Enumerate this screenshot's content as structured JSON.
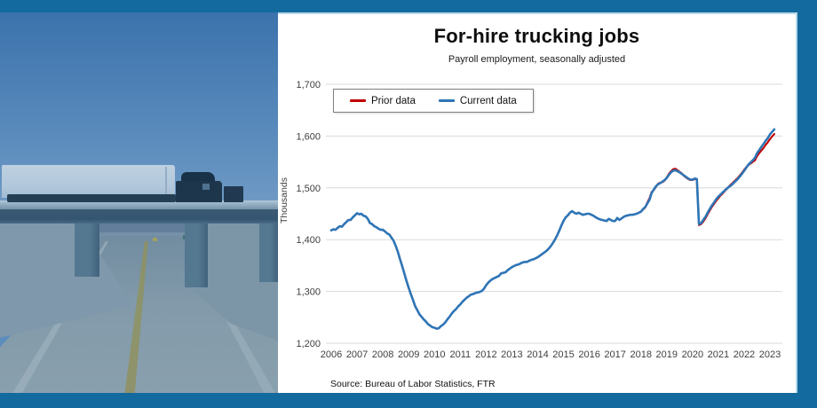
{
  "frame": {
    "border_color": "#136a9e",
    "edge_highlight_color": "#b7d9eb"
  },
  "photo": {
    "description": "Semi truck crossing a highway overpass, viewed from road below, blue tinted"
  },
  "chart": {
    "title": "For-hire trucking jobs",
    "subtitle": "Payroll employment, seasonally adjusted",
    "y_axis_title": "Thousands",
    "source": "Source: Bureau of Labor Statistics, FTR",
    "legend": [
      {
        "label": "Prior data",
        "color": "#c00000"
      },
      {
        "label": "Current data",
        "color": "#2e75b6"
      }
    ]
  },
  "chart_data": {
    "type": "line",
    "title": "For-hire trucking jobs",
    "subtitle": "Payroll employment, seasonally adjusted",
    "xlabel": "",
    "ylabel": "Thousands",
    "ylim": [
      1200,
      1700
    ],
    "y_ticks": [
      1200,
      1300,
      1400,
      1500,
      1600,
      1700
    ],
    "x_ticks": [
      2006,
      2007,
      2008,
      2009,
      2010,
      2011,
      2012,
      2013,
      2014,
      2015,
      2016,
      2017,
      2018,
      2019,
      2020,
      2021,
      2022,
      2023
    ],
    "grid": "horizontal",
    "gridline_color": "#d9d9d9",
    "legend_position": "top-left",
    "x_start": 2006.0,
    "x_step_months": 1,
    "series": [
      {
        "name": "Prior data",
        "color": "#c00000",
        "values": [
          1418,
          1420,
          1419,
          1423,
          1426,
          1425,
          1430,
          1434,
          1438,
          1438,
          1443,
          1447,
          1451,
          1449,
          1450,
          1446,
          1445,
          1440,
          1432,
          1430,
          1426,
          1424,
          1421,
          1419,
          1419,
          1416,
          1412,
          1410,
          1404,
          1398,
          1388,
          1376,
          1362,
          1349,
          1335,
          1320,
          1307,
          1295,
          1284,
          1272,
          1264,
          1256,
          1251,
          1246,
          1242,
          1237,
          1234,
          1231,
          1230,
          1228,
          1229,
          1233,
          1236,
          1240,
          1246,
          1251,
          1257,
          1262,
          1266,
          1271,
          1275,
          1280,
          1284,
          1288,
          1291,
          1294,
          1295,
          1297,
          1298,
          1299,
          1301,
          1305,
          1312,
          1317,
          1321,
          1324,
          1326,
          1328,
          1330,
          1335,
          1336,
          1337,
          1341,
          1344,
          1347,
          1349,
          1351,
          1352,
          1354,
          1356,
          1357,
          1357,
          1359,
          1361,
          1362,
          1364,
          1366,
          1369,
          1372,
          1375,
          1378,
          1382,
          1387,
          1393,
          1400,
          1408,
          1417,
          1427,
          1436,
          1443,
          1447,
          1452,
          1455,
          1452,
          1450,
          1452,
          1450,
          1448,
          1449,
          1450,
          1450,
          1448,
          1446,
          1443,
          1441,
          1439,
          1438,
          1437,
          1436,
          1440,
          1438,
          1436,
          1436,
          1442,
          1438,
          1441,
          1444,
          1446,
          1447,
          1448,
          1448,
          1449,
          1450,
          1452,
          1454,
          1458,
          1462,
          1472,
          1480,
          1492,
          1496,
          1502,
          1508,
          1510,
          1511,
          1514,
          1520,
          1527,
          1532,
          1536,
          1537,
          1534,
          1531,
          1528,
          1523,
          1520,
          1517,
          1515,
          1515,
          1517,
          1516,
          1428,
          1430,
          1435,
          1441,
          1449,
          1456,
          1463,
          1469,
          1475,
          1480,
          1485,
          1489,
          1494,
          1498,
          1503,
          1507,
          1511,
          1515,
          1519,
          1524,
          1529,
          1535,
          1540,
          1544,
          1547,
          1550,
          1553,
          1561,
          1567,
          1572,
          1577,
          1583,
          1588,
          1594,
          1599,
          1604
        ]
      },
      {
        "name": "Current data",
        "color": "#2e75b6",
        "values": [
          1418,
          1420,
          1419,
          1423,
          1426,
          1425,
          1430,
          1434,
          1438,
          1438,
          1443,
          1447,
          1451,
          1449,
          1450,
          1446,
          1445,
          1440,
          1432,
          1430,
          1426,
          1424,
          1421,
          1419,
          1419,
          1416,
          1412,
          1410,
          1404,
          1398,
          1388,
          1376,
          1362,
          1349,
          1335,
          1320,
          1307,
          1295,
          1284,
          1272,
          1264,
          1256,
          1251,
          1246,
          1242,
          1237,
          1234,
          1231,
          1230,
          1228,
          1229,
          1233,
          1236,
          1240,
          1246,
          1251,
          1257,
          1262,
          1266,
          1271,
          1275,
          1280,
          1284,
          1288,
          1291,
          1294,
          1295,
          1297,
          1298,
          1299,
          1301,
          1305,
          1312,
          1317,
          1321,
          1324,
          1326,
          1328,
          1330,
          1335,
          1336,
          1337,
          1341,
          1344,
          1347,
          1349,
          1351,
          1352,
          1354,
          1356,
          1357,
          1357,
          1359,
          1361,
          1362,
          1364,
          1366,
          1369,
          1372,
          1375,
          1378,
          1382,
          1387,
          1393,
          1400,
          1408,
          1417,
          1427,
          1436,
          1443,
          1447,
          1452,
          1455,
          1452,
          1450,
          1452,
          1450,
          1448,
          1449,
          1450,
          1450,
          1448,
          1446,
          1443,
          1441,
          1439,
          1438,
          1437,
          1436,
          1440,
          1438,
          1436,
          1436,
          1442,
          1438,
          1441,
          1444,
          1446,
          1447,
          1448,
          1448,
          1449,
          1450,
          1452,
          1454,
          1459,
          1463,
          1470,
          1477,
          1490,
          1497,
          1503,
          1507,
          1509,
          1512,
          1515,
          1519,
          1525,
          1530,
          1533,
          1534,
          1532,
          1530,
          1527,
          1524,
          1521,
          1518,
          1516,
          1516,
          1518,
          1517,
          1430,
          1432,
          1438,
          1444,
          1452,
          1459,
          1466,
          1472,
          1478,
          1483,
          1487,
          1491,
          1495,
          1499,
          1502,
          1505,
          1509,
          1513,
          1517,
          1522,
          1527,
          1533,
          1539,
          1545,
          1549,
          1553,
          1558,
          1567,
          1573,
          1579,
          1585,
          1591,
          1596,
          1603,
          1608,
          1613
        ]
      }
    ],
    "source": "Source: Bureau of Labor Statistics, FTR"
  }
}
